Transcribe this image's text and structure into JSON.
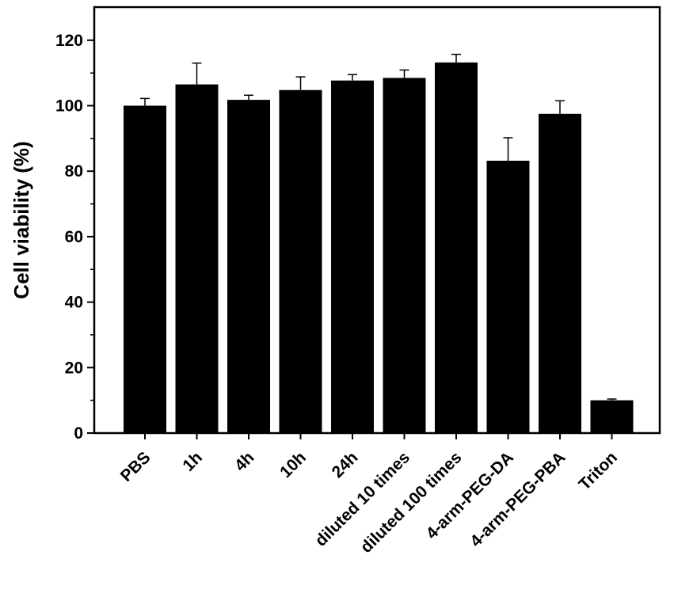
{
  "chart_data": {
    "type": "bar",
    "title": "",
    "xlabel": "",
    "ylabel": "Cell viability (%)",
    "ylim": [
      0,
      130
    ],
    "yticks": [
      "0",
      "20",
      "40",
      "60",
      "80",
      "100",
      "120"
    ],
    "categories": [
      "PBS",
      "1h",
      "4h",
      "10h",
      "24h",
      "diluted 10 times",
      "diluted 100 times",
      "4-arm-PEG-DA",
      "4-arm-PEG-PBA",
      "Triton"
    ],
    "values": [
      100,
      106.5,
      101.8,
      104.8,
      107.7,
      108.5,
      113.2,
      83.2,
      97.5,
      10
    ],
    "errors": [
      2.2,
      6.5,
      1.4,
      4.0,
      1.8,
      2.4,
      2.5,
      7.0,
      4.0,
      0.4
    ],
    "grid": false,
    "legend": "none",
    "colors": {
      "bar": "#000000",
      "axis": "#000000",
      "background": "#ffffff"
    }
  }
}
